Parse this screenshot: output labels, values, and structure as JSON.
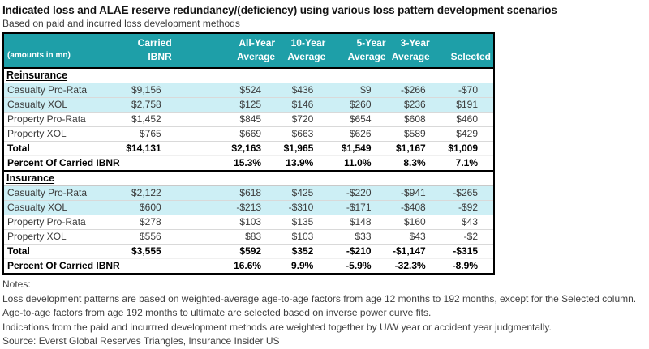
{
  "colors": {
    "header_bg": "#1E9FA8",
    "header_text": "#FFFFFF",
    "highlight_row_bg": "#CDEFF5",
    "border": "#000000"
  },
  "chart_data": {
    "type": "table",
    "title": "Indicated loss and ALAE reserve redundancy/(deficiency) using various loss pattern development scenarios",
    "subtitle": "Based on paid and incurred loss development methods",
    "unit_label": "(amounts in mn)",
    "columns": [
      {
        "line1": "Carried",
        "line2": "IBNR"
      },
      {
        "line1": "All-Year",
        "line2": "Average"
      },
      {
        "line1": "10-Year",
        "line2": "Average"
      },
      {
        "line1": "5-Year",
        "line2": "Average"
      },
      {
        "line1": "3-Year",
        "line2": "Average"
      },
      {
        "line1": "",
        "line2": "Selected"
      }
    ],
    "sections": [
      {
        "name": "Reinsurance",
        "rows": [
          {
            "label": "Casualty Pro-Rata",
            "values": [
              "$9,156",
              "$524",
              "$436",
              "$9",
              "-$266",
              "-$70"
            ]
          },
          {
            "label": "Casualty XOL",
            "values": [
              "$2,758",
              "$125",
              "$146",
              "$260",
              "$236",
              "$191"
            ]
          },
          {
            "label": "Property Pro-Rata",
            "values": [
              "$1,452",
              "$845",
              "$720",
              "$654",
              "$608",
              "$460"
            ]
          },
          {
            "label": "Property XOL",
            "values": [
              "$765",
              "$669",
              "$663",
              "$626",
              "$589",
              "$429"
            ]
          }
        ],
        "total_row": {
          "label": "Total",
          "values": [
            "$14,131",
            "$2,163",
            "$1,965",
            "$1,549",
            "$1,167",
            "$1,009"
          ]
        },
        "percent_row": {
          "label": "Percent Of Carried IBNR",
          "values": [
            "",
            "15.3%",
            "13.9%",
            "11.0%",
            "8.3%",
            "7.1%"
          ]
        }
      },
      {
        "name": "Insurance",
        "rows": [
          {
            "label": "Casualty Pro-Rata",
            "values": [
              "$2,122",
              "$618",
              "$425",
              "-$220",
              "-$941",
              "-$265"
            ]
          },
          {
            "label": "Casualty XOL",
            "values": [
              "$600",
              "-$213",
              "-$310",
              "-$171",
              "-$408",
              "-$92"
            ]
          },
          {
            "label": "Property Pro-Rata",
            "values": [
              "$278",
              "$103",
              "$135",
              "$148",
              "$160",
              "$43"
            ]
          },
          {
            "label": "Property XOL",
            "values": [
              "$556",
              "$83",
              "$103",
              "$33",
              "$43",
              "-$2"
            ]
          }
        ],
        "total_row": {
          "label": "Total",
          "values": [
            "$3,555",
            "$592",
            "$352",
            "-$210",
            "-$1,147",
            "-$315"
          ]
        },
        "percent_row": {
          "label": "Percent Of Carried IBNR",
          "values": [
            "",
            "16.6%",
            "9.9%",
            "-5.9%",
            "-32.3%",
            "-8.9%"
          ]
        }
      }
    ],
    "notes": {
      "heading": "Notes:",
      "lines": [
        "Loss development patterns are based on weighted-average age-to-age factors from age 12 months to 192 months, except for the Selected column.",
        "Age-to-age factors from age 192 months to ultimate are selected based on inverse power curve fits.",
        "Indications from the paid and incurrred development methods are weighted together by U/W year or accident year judgmentally."
      ],
      "source": "Source: Everst Global Reserves Triangles, Insurance Insider US"
    }
  }
}
